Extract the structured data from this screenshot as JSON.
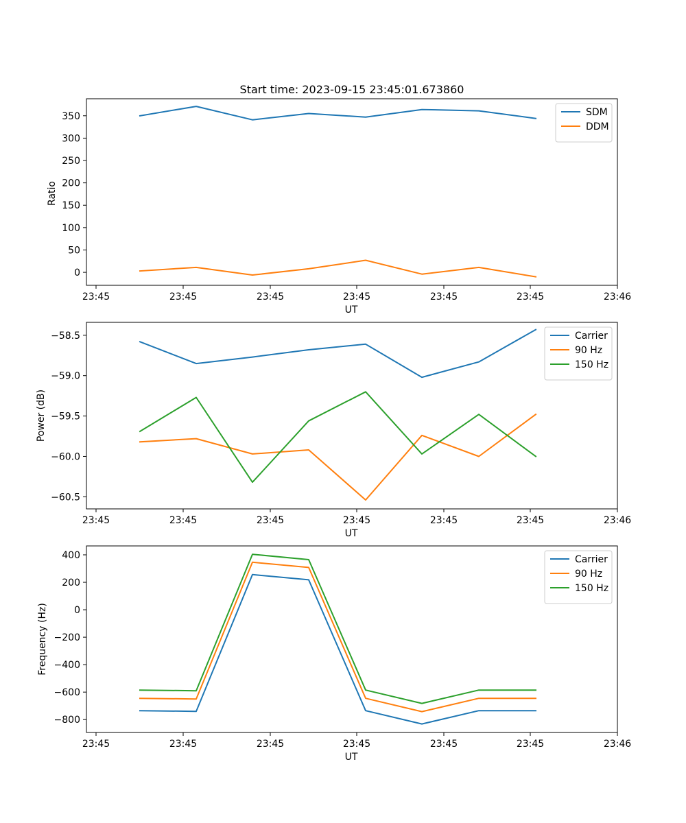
{
  "title": "Start time: 2023-09-15 23:45:01.673860",
  "chart_data": [
    {
      "type": "line",
      "ylabel": "Ratio",
      "xlabel": "UT",
      "x_tick_labels": [
        "23:45",
        "23:45",
        "23:45",
        "23:45",
        "23:45",
        "23:45",
        "23:46"
      ],
      "y_ticks": [
        0,
        50,
        100,
        150,
        200,
        250,
        300,
        350
      ],
      "y_tick_labels": [
        "0",
        "50",
        "100",
        "150",
        "200",
        "250",
        "300",
        "350"
      ],
      "ylim": [
        -29,
        388
      ],
      "legend": "top-right",
      "series": [
        {
          "name": "SDM",
          "color": "#1f77b4",
          "values": [
            350,
            371,
            341,
            355,
            347,
            364,
            361,
            344
          ]
        },
        {
          "name": "DDM",
          "color": "#ff7f0e",
          "values": [
            3,
            11,
            -6,
            8,
            27,
            -4,
            11,
            -10
          ]
        }
      ]
    },
    {
      "type": "line",
      "ylabel": "Power (dB)",
      "xlabel": "UT",
      "x_tick_labels": [
        "23:45",
        "23:45",
        "23:45",
        "23:45",
        "23:45",
        "23:45",
        "23:46"
      ],
      "y_ticks": [
        -60.5,
        -60.0,
        -59.5,
        -59.0,
        -58.5
      ],
      "y_tick_labels": [
        "−60.5",
        "−60.0",
        "−59.5",
        "−59.0",
        "−58.5"
      ],
      "ylim": [
        -60.65,
        -58.34
      ],
      "legend": "top-right",
      "series": [
        {
          "name": "Carrier",
          "color": "#1f77b4",
          "values": [
            -58.58,
            -58.85,
            -58.77,
            -58.68,
            -58.61,
            -59.02,
            -58.83,
            -58.43
          ]
        },
        {
          "name": "90 Hz",
          "color": "#ff7f0e",
          "values": [
            -59.82,
            -59.78,
            -59.97,
            -59.92,
            -60.54,
            -59.74,
            -60.0,
            -59.48
          ]
        },
        {
          "name": "150 Hz",
          "color": "#2ca02c",
          "values": [
            -59.69,
            -59.27,
            -60.32,
            -59.56,
            -59.2,
            -59.97,
            -59.48,
            -60.0
          ]
        }
      ]
    },
    {
      "type": "line",
      "ylabel": "Frequency (Hz)",
      "xlabel": "UT",
      "x_tick_labels": [
        "23:45",
        "23:45",
        "23:45",
        "23:45",
        "23:45",
        "23:45",
        "23:46"
      ],
      "y_ticks": [
        -800,
        -600,
        -400,
        -200,
        0,
        200,
        400
      ],
      "y_tick_labels": [
        "−800",
        "−600",
        "−400",
        "−200",
        "0",
        "200",
        "400"
      ],
      "ylim": [
        -894,
        465
      ],
      "legend": "top-right",
      "series": [
        {
          "name": "Carrier",
          "color": "#1f77b4",
          "values": [
            -735,
            -740,
            256,
            218,
            -735,
            -832,
            -735,
            -735
          ]
        },
        {
          "name": "90 Hz",
          "color": "#ff7f0e",
          "values": [
            -645,
            -650,
            346,
            308,
            -645,
            -742,
            -645,
            -645
          ]
        },
        {
          "name": "150 Hz",
          "color": "#2ca02c",
          "values": [
            -585,
            -590,
            404,
            365,
            -585,
            -682,
            -585,
            -585
          ]
        }
      ]
    }
  ]
}
